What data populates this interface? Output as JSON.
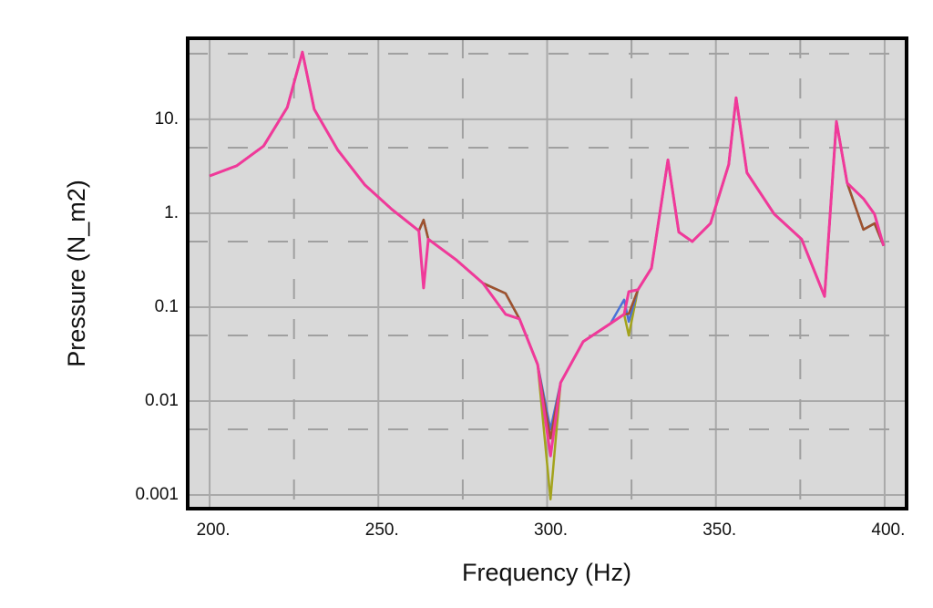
{
  "chart_data": {
    "type": "line",
    "ylabel": "Pressure (N_m2)",
    "xlabel": "Frequency (Hz)",
    "log_y": true,
    "grid": true,
    "background": "#d9d9d9",
    "xlim": [
      193.5,
      406.5
    ],
    "ylim": [
      0.000715,
      73
    ],
    "xticks": [
      {
        "value": 200,
        "label": "200."
      },
      {
        "value": 250,
        "label": "250."
      },
      {
        "value": 300,
        "label": "300."
      },
      {
        "value": 350,
        "label": "350."
      },
      {
        "value": 400,
        "label": "400."
      }
    ],
    "yticks": [
      {
        "value": 0.001,
        "label": "0.001"
      },
      0.01,
      0.1,
      {
        "value": 1,
        "label": "1."
      },
      {
        "value": 10,
        "label": "10."
      }
    ],
    "minor_xticks": [
      225,
      275,
      325,
      375
    ],
    "minor_yticks": [
      0.005,
      0.05,
      0.5,
      5,
      50
    ],
    "x": [
      200,
      208,
      216,
      223,
      227.5,
      231,
      238,
      246,
      254,
      262,
      263.4,
      264.8,
      273,
      281,
      287.7,
      291.8,
      297.2,
      301,
      304,
      310.7,
      318.8,
      322.8,
      324.2,
      326.9,
      330.9,
      335.8,
      339,
      343,
      348.4,
      353.8,
      356,
      359.2,
      367.3,
      375.4,
      382.2,
      385.7,
      388.9,
      393.7,
      397,
      399.7
    ],
    "series": [
      {
        "color": "#a3a31c",
        "values": [
          2.5,
          3.2,
          5.2,
          13.4,
          52,
          12.8,
          4.7,
          2.0,
          1.1,
          0.65,
          0.85,
          0.53,
          0.32,
          0.18,
          0.14,
          0.075,
          0.0245,
          0.0009,
          0.0157,
          0.043,
          0.067,
          0.084,
          0.05,
          0.153,
          0.26,
          3.7,
          0.63,
          0.5,
          0.78,
          3.3,
          17,
          2.7,
          0.98,
          0.53,
          0.13,
          9.5,
          2.1,
          0.67,
          0.78,
          0.45
        ]
      },
      {
        "color": "#4a72d8",
        "values": [
          2.5,
          3.2,
          5.2,
          13.4,
          52,
          12.8,
          4.7,
          2.0,
          1.1,
          0.65,
          0.85,
          0.53,
          0.32,
          0.18,
          0.14,
          0.075,
          0.0245,
          0.005,
          0.0157,
          0.043,
          0.067,
          0.12,
          0.07,
          0.153,
          0.26,
          3.7,
          0.63,
          0.5,
          0.78,
          3.3,
          17,
          2.7,
          0.98,
          0.53,
          0.13,
          9.5,
          2.1,
          0.67,
          0.78,
          0.45
        ]
      },
      {
        "color": "#a0522d",
        "values": [
          2.5,
          3.2,
          5.2,
          13.4,
          52,
          12.8,
          4.7,
          2.0,
          1.1,
          0.65,
          0.85,
          0.53,
          0.32,
          0.18,
          0.14,
          0.075,
          0.0245,
          0.004,
          0.0157,
          0.043,
          0.067,
          0.084,
          0.085,
          0.153,
          0.26,
          3.7,
          0.63,
          0.5,
          0.78,
          3.3,
          17,
          2.7,
          0.98,
          0.53,
          0.13,
          9.5,
          2.1,
          0.67,
          0.78,
          0.45
        ]
      },
      {
        "color": "#f0399a",
        "values": [
          2.5,
          3.2,
          5.2,
          13.4,
          52,
          12.8,
          4.7,
          2.0,
          1.1,
          0.65,
          0.16,
          0.53,
          0.32,
          0.18,
          0.084,
          0.075,
          0.0245,
          0.0026,
          0.0157,
          0.043,
          0.067,
          0.084,
          0.146,
          0.153,
          0.26,
          3.7,
          0.63,
          0.5,
          0.78,
          3.3,
          17,
          2.7,
          0.98,
          0.53,
          0.13,
          9.5,
          2.1,
          1.43,
          0.98,
          0.45
        ]
      }
    ]
  }
}
